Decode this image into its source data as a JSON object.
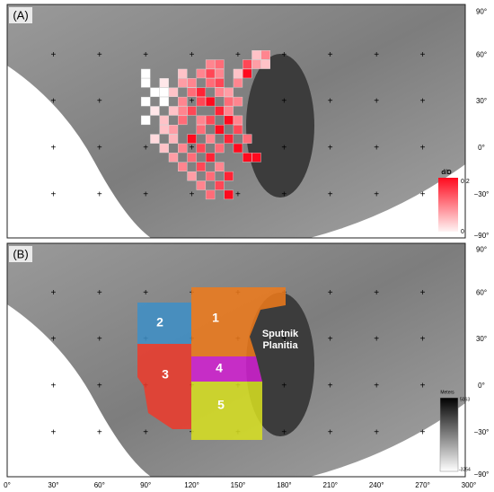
{
  "panel_a": {
    "label": "(A)",
    "colorbar": {
      "title": "d/D",
      "max": "0.2",
      "min": "0"
    },
    "cells": [
      [
        162,
        60,
        0.05
      ],
      [
        168,
        60,
        0.1
      ],
      [
        132,
        54,
        0.1
      ],
      [
        138,
        54,
        0.12
      ],
      [
        156,
        54,
        0.15
      ],
      [
        162,
        54,
        0.08
      ],
      [
        168,
        54,
        0.05
      ],
      [
        90,
        48,
        0
      ],
      [
        114,
        48,
        0.05
      ],
      [
        126,
        48,
        0.1
      ],
      [
        132,
        48,
        0.15
      ],
      [
        138,
        48,
        0.1
      ],
      [
        150,
        48,
        0.05
      ],
      [
        156,
        48,
        0.2
      ],
      [
        90,
        42,
        0
      ],
      [
        102,
        42,
        0.02
      ],
      [
        114,
        42,
        0.08
      ],
      [
        120,
        42,
        0.1
      ],
      [
        132,
        42,
        0.12
      ],
      [
        138,
        42,
        0.15
      ],
      [
        150,
        42,
        0.1
      ],
      [
        96,
        36,
        0
      ],
      [
        102,
        36,
        0
      ],
      [
        108,
        36,
        0.05
      ],
      [
        120,
        36,
        0.12
      ],
      [
        126,
        36,
        0.18
      ],
      [
        138,
        36,
        0.1
      ],
      [
        144,
        36,
        0.08
      ],
      [
        90,
        30,
        0
      ],
      [
        102,
        30,
        0
      ],
      [
        114,
        30,
        0.1
      ],
      [
        126,
        30,
        0.15
      ],
      [
        132,
        30,
        0.2
      ],
      [
        144,
        30,
        0.12
      ],
      [
        150,
        30,
        0.1
      ],
      [
        96,
        24,
        0.02
      ],
      [
        108,
        24,
        0.05
      ],
      [
        114,
        24,
        0.1
      ],
      [
        120,
        24,
        0.15
      ],
      [
        138,
        24,
        0.18
      ],
      [
        144,
        24,
        0.1
      ],
      [
        90,
        18,
        0
      ],
      [
        102,
        18,
        0.05
      ],
      [
        114,
        18,
        0.12
      ],
      [
        126,
        18,
        0.1
      ],
      [
        132,
        18,
        0.15
      ],
      [
        144,
        18,
        0.2
      ],
      [
        150,
        18,
        0.1
      ],
      [
        102,
        12,
        0.05
      ],
      [
        108,
        12,
        0.08
      ],
      [
        126,
        12,
        0.12
      ],
      [
        138,
        12,
        0.2
      ],
      [
        150,
        12,
        0.15
      ],
      [
        96,
        6,
        0.03
      ],
      [
        108,
        6,
        0.06
      ],
      [
        120,
        6,
        0.2
      ],
      [
        132,
        6,
        0.1
      ],
      [
        144,
        6,
        0.18
      ],
      [
        156,
        6,
        0.12
      ],
      [
        102,
        0,
        0.05
      ],
      [
        114,
        0,
        0.1
      ],
      [
        126,
        0,
        0.15
      ],
      [
        138,
        0,
        0.12
      ],
      [
        150,
        0,
        0.2
      ],
      [
        108,
        -6,
        0.08
      ],
      [
        120,
        -6,
        0.12
      ],
      [
        132,
        -6,
        0.18
      ],
      [
        156,
        -6,
        0.2
      ],
      [
        162,
        -6,
        0.2
      ],
      [
        114,
        -12,
        0.1
      ],
      [
        126,
        -12,
        0.15
      ],
      [
        138,
        -12,
        0.1
      ],
      [
        120,
        -18,
        0.08
      ],
      [
        132,
        -18,
        0.12
      ],
      [
        144,
        -18,
        0.18
      ],
      [
        126,
        -24,
        0.1
      ],
      [
        138,
        -24,
        0.15
      ],
      [
        132,
        -30,
        0.12
      ],
      [
        144,
        -30,
        0.2
      ]
    ]
  },
  "panel_b": {
    "label": "(B)",
    "feature": "Sputnik\nPlanitia",
    "colorbar": {
      "title": "Meters",
      "max": "5063",
      "min": "-3254"
    },
    "regions": [
      {
        "label": "1",
        "color": "#f07a1a"
      },
      {
        "label": "2",
        "color": "#3d8fc8"
      },
      {
        "label": "3",
        "color": "#ee3a2a"
      },
      {
        "label": "4",
        "color": "#d21fd2"
      },
      {
        "label": "5",
        "color": "#d8e020"
      }
    ]
  },
  "lat_ticks": [
    {
      "value": 90,
      "label": "90°"
    },
    {
      "value": 60,
      "label": "60°"
    },
    {
      "value": 30,
      "label": "30°"
    },
    {
      "value": 0,
      "label": "0°"
    },
    {
      "value": -30,
      "label": "−30°"
    },
    {
      "value": -90,
      "label": "−90°"
    }
  ],
  "lon_ticks": [
    {
      "value": 0,
      "label": "0°"
    },
    {
      "value": 30,
      "label": "30°"
    },
    {
      "value": 60,
      "label": "60°"
    },
    {
      "value": 90,
      "label": "90°"
    },
    {
      "value": 120,
      "label": "120°"
    },
    {
      "value": 150,
      "label": "150°"
    },
    {
      "value": 180,
      "label": "180°"
    },
    {
      "value": 210,
      "label": "210°"
    },
    {
      "value": 240,
      "label": "240°"
    },
    {
      "value": 270,
      "label": "270°"
    },
    {
      "value": 300,
      "label": "300°"
    }
  ]
}
